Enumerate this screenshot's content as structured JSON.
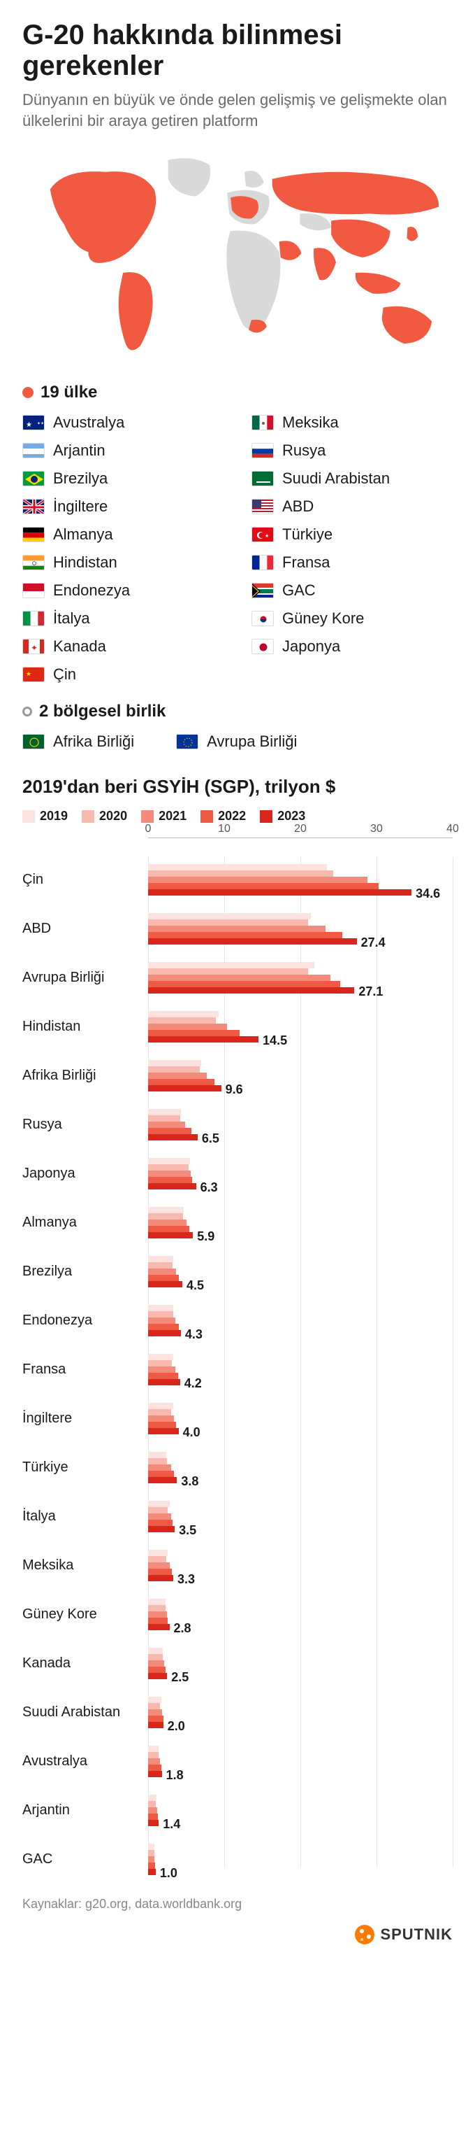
{
  "header": {
    "title": "G-20 hakkında bilinmesi gerekenler",
    "subtitle": "Dünyanın en büyük ve önde gelen gelişmiş ve gelişmekte olan ülkelerini bir araya getiren platform"
  },
  "map": {
    "highlight_color": "#f15a40",
    "land_color": "#d9d9d9",
    "ocean_color": "#ffffff"
  },
  "countries_legend": {
    "label": "19 ülke",
    "dot_color": "#f15a40"
  },
  "unions_legend": {
    "label": "2 bölgesel birlik",
    "dot_color": "#9a9a9a"
  },
  "countries_left": [
    {
      "name": "Avustralya",
      "flag": "au"
    },
    {
      "name": "Arjantin",
      "flag": "ar"
    },
    {
      "name": "Brezilya",
      "flag": "br"
    },
    {
      "name": "İngiltere",
      "flag": "gb"
    },
    {
      "name": "Almanya",
      "flag": "de"
    },
    {
      "name": "Hindistan",
      "flag": "in"
    },
    {
      "name": "Endonezya",
      "flag": "id"
    },
    {
      "name": "İtalya",
      "flag": "it"
    },
    {
      "name": "Kanada",
      "flag": "ca"
    },
    {
      "name": "Çin",
      "flag": "cn"
    }
  ],
  "countries_right": [
    {
      "name": "Meksika",
      "flag": "mx"
    },
    {
      "name": "Rusya",
      "flag": "ru"
    },
    {
      "name": "Suudi Arabistan",
      "flag": "sa"
    },
    {
      "name": "ABD",
      "flag": "us"
    },
    {
      "name": "Türkiye",
      "flag": "tr"
    },
    {
      "name": "Fransa",
      "flag": "fr"
    },
    {
      "name": "GAC",
      "flag": "za"
    },
    {
      "name": "Güney Kore",
      "flag": "kr"
    },
    {
      "name": "Japonya",
      "flag": "jp"
    }
  ],
  "unions": [
    {
      "name": "Afrika Birliği",
      "flag": "au_union"
    },
    {
      "name": "Avrupa Birliği",
      "flag": "eu"
    }
  ],
  "chart": {
    "title": "2019'dan beri GSYİH (SGP), trilyon $",
    "years": [
      "2019",
      "2020",
      "2021",
      "2022",
      "2023"
    ],
    "year_colors": [
      "#fde3df",
      "#f9b9ae",
      "#f48a79",
      "#ee5a44",
      "#d8261a"
    ],
    "xmax": 40,
    "xticks": [
      0,
      10,
      20,
      30,
      40
    ],
    "axis_fontsize": 16,
    "label_fontsize": 20,
    "value_fontsize": 18,
    "grid_color": "#e5e5e5",
    "rows": [
      {
        "label": "Çin",
        "v": [
          23.5,
          24.3,
          28.8,
          30.3,
          34.6
        ]
      },
      {
        "label": "ABD",
        "v": [
          21.4,
          21.0,
          23.3,
          25.5,
          27.4
        ]
      },
      {
        "label": "Avrupa Birliği",
        "v": [
          21.8,
          21.0,
          23.9,
          25.2,
          27.1
        ]
      },
      {
        "label": "Hindistan",
        "v": [
          9.3,
          8.9,
          10.4,
          12.0,
          14.5
        ]
      },
      {
        "label": "Afrika Birliği",
        "v": [
          7.0,
          6.8,
          7.7,
          8.7,
          9.6
        ]
      },
      {
        "label": "Rusya",
        "v": [
          4.3,
          4.2,
          4.9,
          5.7,
          6.5
        ]
      },
      {
        "label": "Japonya",
        "v": [
          5.5,
          5.3,
          5.6,
          5.8,
          6.3
        ]
      },
      {
        "label": "Almanya",
        "v": [
          4.7,
          4.6,
          5.0,
          5.4,
          5.9
        ]
      },
      {
        "label": "Brezilya",
        "v": [
          3.3,
          3.2,
          3.7,
          4.0,
          4.5
        ]
      },
      {
        "label": "Endonezya",
        "v": [
          3.3,
          3.3,
          3.6,
          4.0,
          4.3
        ]
      },
      {
        "label": "Fransa",
        "v": [
          3.3,
          3.1,
          3.6,
          3.9,
          4.2
        ]
      },
      {
        "label": "İngiltere",
        "v": [
          3.3,
          3.0,
          3.4,
          3.7,
          4.0
        ]
      },
      {
        "label": "Türkiye",
        "v": [
          2.4,
          2.5,
          3.0,
          3.4,
          3.8
        ]
      },
      {
        "label": "İtalya",
        "v": [
          2.8,
          2.6,
          3.0,
          3.2,
          3.5
        ]
      },
      {
        "label": "Meksika",
        "v": [
          2.6,
          2.4,
          2.8,
          3.1,
          3.3
        ]
      },
      {
        "label": "Güney Kore",
        "v": [
          2.3,
          2.3,
          2.5,
          2.6,
          2.8
        ]
      },
      {
        "label": "Kanada",
        "v": [
          1.9,
          1.9,
          2.1,
          2.3,
          2.5
        ]
      },
      {
        "label": "Suudi Arabistan",
        "v": [
          1.7,
          1.6,
          1.8,
          2.0,
          2.0
        ]
      },
      {
        "label": "Avustralya",
        "v": [
          1.4,
          1.4,
          1.6,
          1.7,
          1.8
        ]
      },
      {
        "label": "Arjantin",
        "v": [
          1.1,
          1.0,
          1.2,
          1.3,
          1.4
        ]
      },
      {
        "label": "GAC",
        "v": [
          0.83,
          0.78,
          0.87,
          0.94,
          1.0
        ]
      }
    ]
  },
  "sources": {
    "label": "Kaynaklar: g20.org, data.worldbank.org"
  },
  "brand": {
    "name": "SPUTNIK"
  },
  "flag_svgs": {
    "au": "<rect width='32' height='22' fill='#00247d'/><text x='4' y='16' font-size='10' fill='#fff'>★</text><text x='20' y='13' font-size='6' fill='#fff'>✦✦</text>",
    "ar": "<rect width='32' height='22' fill='#fff'/><rect width='32' height='7' fill='#74acdf'/><rect y='15' width='32' height='7' fill='#74acdf'/>",
    "br": "<rect width='32' height='22' fill='#009b3a'/><polygon points='16,3 29,11 16,19 3,11' fill='#fedf00'/><circle cx='16' cy='11' r='5' fill='#002776'/>",
    "gb": "<rect width='32' height='22' fill='#012169'/><path d='M0,0 L32,22 M32,0 L0,22' stroke='#fff' stroke-width='4'/><path d='M0,0 L32,22 M32,0 L0,22' stroke='#c8102e' stroke-width='2'/><path d='M16,0 V22 M0,11 H32' stroke='#fff' stroke-width='6'/><path d='M16,0 V22 M0,11 H32' stroke='#c8102e' stroke-width='3'/>",
    "de": "<rect width='32' height='7.33' fill='#000'/><rect y='7.33' width='32' height='7.33' fill='#dd0000'/><rect y='14.66' width='32' height='7.34' fill='#ffce00'/>",
    "in": "<rect width='32' height='7.33' fill='#ff9933'/><rect y='7.33' width='32' height='7.33' fill='#fff'/><rect y='14.66' width='32' height='7.34' fill='#138808'/><circle cx='16' cy='11' r='2.5' fill='none' stroke='#000080' stroke-width='0.6'/>",
    "id": "<rect width='32' height='11' fill='#ce1126'/><rect y='11' width='32' height='11' fill='#fff'/>",
    "it": "<rect width='10.66' height='22' fill='#009246'/><rect x='10.66' width='10.66' height='22' fill='#fff'/><rect x='21.33' width='10.67' height='22' fill='#ce2b37'/>",
    "ca": "<rect width='32' height='22' fill='#fff'/><rect width='8' height='22' fill='#d52b1e'/><rect x='24' width='8' height='22' fill='#d52b1e'/><text x='16' y='16' text-anchor='middle' font-size='12' fill='#d52b1e'>✦</text>",
    "cn": "<rect width='32' height='22' fill='#de2910'/><text x='4' y='12' font-size='9' fill='#ffde00'>★</text>",
    "mx": "<rect width='10.66' height='22' fill='#006847'/><rect x='10.66' width='10.66' height='22' fill='#fff'/><rect x='21.33' width='10.67' height='22' fill='#ce1126'/><circle cx='16' cy='11' r='2' fill='#8a5a2b'/>",
    "ru": "<rect width='32' height='7.33' fill='#fff'/><rect y='7.33' width='32' height='7.33' fill='#0039a6'/><rect y='14.66' width='32' height='7.34' fill='#d52b1e'/>",
    "sa": "<rect width='32' height='22' fill='#006c35'/><rect x='6' y='14' width='20' height='2' fill='#fff'/>",
    "us": "<rect width='32' height='22' fill='#b22234'/><rect y='2' width='32' height='2' fill='#fff'/><rect y='6' width='32' height='2' fill='#fff'/><rect y='10' width='32' height='2' fill='#fff'/><rect y='14' width='32' height='2' fill='#fff'/><rect y='18' width='32' height='2' fill='#fff'/><rect width='13' height='12' fill='#3c3b6e'/>",
    "tr": "<rect width='32' height='22' fill='#e30a17'/><circle cx='12' cy='11' r='5' fill='#fff'/><circle cx='13.5' cy='11' r='4' fill='#e30a17'/><text x='18' y='14' font-size='7' fill='#fff'>★</text>",
    "fr": "<rect width='10.66' height='22' fill='#002395'/><rect x='10.66' width='10.66' height='22' fill='#fff'/><rect x='21.33' width='10.67' height='22' fill='#ed2939'/>",
    "za": "<rect width='32' height='22' fill='#007a4d'/><polygon points='0,0 32,0 32,7 12,11 32,15 32,22 0,22' fill='#fff'/><polygon points='0,0 32,0 32,5 14,11 32,17 32,22 0,22' fill='#de3831'/><rect y='11' width='32' height='11' fill='#002395'/><polygon points='0,0 14,11 0,22' fill='#000'/><polygon points='0,3 10,11 0,19' fill='#ffb612'/><path d='M0,0 L14,11 L0,22 M0,0 L32,0 L32,7 L12,11 L32,15 L32,22 L0,22' fill='none'/><polygon points='0,0 32,0 32,6 15,11 32,16 32,22 0,22 15,11' fill='none' stroke='#fff' stroke-width='0'/><polygon points='-2,0 13,11 -2,22 0,22 14,11 0,0' fill='#007a4d'/><polygon points='0,0 32,0 32,6 0,6' fill='#de3831'/><polygon points='0,16 32,16 32,22 0,22' fill='#002395'/><polygon points='0,6 32,6 32,8 0,8' fill='#fff'/><polygon points='0,14 32,14 32,16 0,16' fill='#fff'/><polygon points='0,8 32,8 32,14 0,14' fill='#007a4d'/><polygon points='0,0 12,11 0,22' fill='#000'/><polygon points='0,2 10,11 0,20' fill='#ffb612'/><polygon points='0,3.5 8,11 0,18.5' fill='#000'/>",
    "kr": "<rect width='32' height='22' fill='#fff'/><circle cx='16' cy='11' r='4.5' fill='#c60c30'/><path d='M11.5,11 A4.5,4.5 0 0 0 20.5,11' fill='#003478'/>",
    "jp": "<rect width='32' height='22' fill='#fff'/><circle cx='16' cy='11' r='5.5' fill='#bc002d'/>",
    "au_union": "<rect width='32' height='22' fill='#00632f'/><circle cx='16' cy='11' r='6' fill='none' stroke='#fbc707' stroke-width='1.2'/>",
    "eu": "<rect width='32' height='22' fill='#003399'/><circle cx='16' cy='11' r='6' fill='none' stroke='#ffcc00' stroke-width='1' stroke-dasharray='1.5,2.2'/>"
  }
}
